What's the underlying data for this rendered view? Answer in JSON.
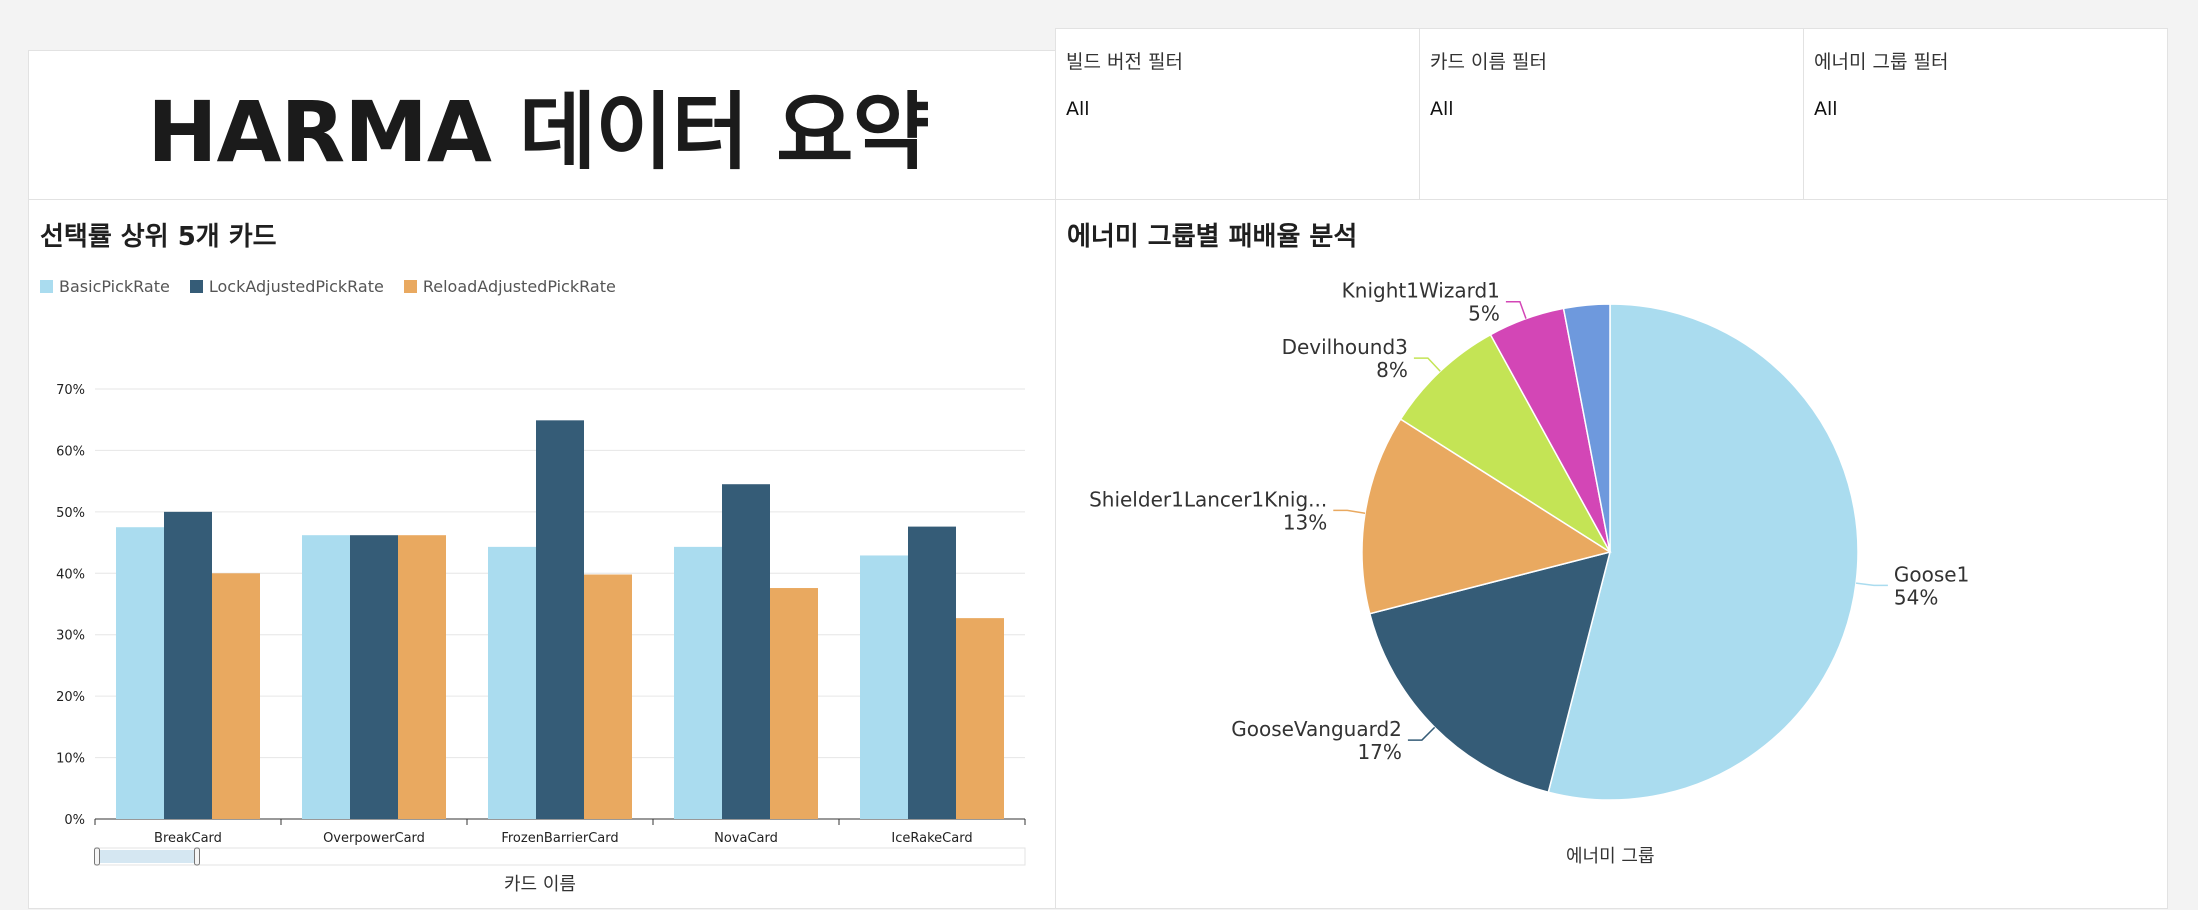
{
  "dashboard": {
    "title": "HARMA 데이터 요약"
  },
  "filters": [
    {
      "label": "빌드 버전 필터",
      "value": "All"
    },
    {
      "label": "카드 이름 필터",
      "value": "All"
    },
    {
      "label": "에너미 그룹 필터",
      "value": "All"
    }
  ],
  "bar_panel": {
    "title": "선택률 상위 5개 카드",
    "xlabel": "카드 이름"
  },
  "pie_panel": {
    "title": "에너미 그룹별 패배율 분석",
    "xlabel": "에너미 그룹"
  },
  "chart_data": [
    {
      "type": "bar",
      "title": "선택률 상위 5개 카드",
      "xlabel": "카드 이름",
      "ylabel": "",
      "ylim": [
        0,
        70
      ],
      "yticks": [
        "0%",
        "10%",
        "20%",
        "30%",
        "40%",
        "50%",
        "60%",
        "70%"
      ],
      "categories": [
        "BreakCard",
        "OverpowerCard",
        "FrozenBarrierCard",
        "NovaCard",
        "IceRakeCard"
      ],
      "series": [
        {
          "name": "BasicPickRate",
          "color": "#aadcef",
          "values": [
            47.5,
            46.2,
            44.3,
            44.3,
            42.9
          ]
        },
        {
          "name": "LockAdjustedPickRate",
          "color": "#355c77",
          "values": [
            50.0,
            46.2,
            64.9,
            54.5,
            47.6
          ]
        },
        {
          "name": "ReloadAdjustedPickRate",
          "color": "#e9a960",
          "values": [
            40.0,
            46.2,
            39.8,
            37.6,
            32.7
          ]
        }
      ],
      "legend": "top-left",
      "grid": true
    },
    {
      "type": "pie",
      "title": "에너미 그룹별 패배율 분석",
      "xlabel": "에너미 그룹",
      "slices": [
        {
          "label": "Goose1",
          "value": 54,
          "pct_label": "54%",
          "color": "#aadcef"
        },
        {
          "label": "GooseVanguard2",
          "value": 17,
          "pct_label": "17%",
          "color": "#355c77"
        },
        {
          "label": "Shielder1Lancer1Knig...",
          "value": 13,
          "pct_label": "13%",
          "color": "#e9a960"
        },
        {
          "label": "Devilhound3",
          "value": 8,
          "pct_label": "8%",
          "color": "#c4e455"
        },
        {
          "label": "Knight1Wizard1",
          "value": 5,
          "pct_label": "5%",
          "color": "#d346b6"
        },
        {
          "label": "",
          "value": 3,
          "pct_label": "",
          "color": "#6e99dd"
        }
      ]
    }
  ]
}
